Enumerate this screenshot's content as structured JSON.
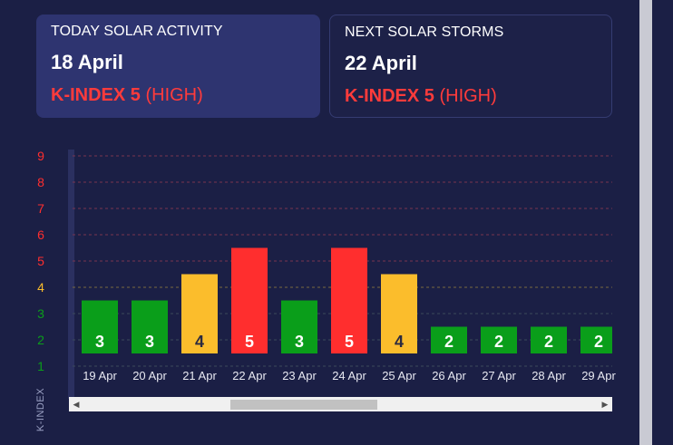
{
  "cards": {
    "today": {
      "label": "TODAY SOLAR ACTIVITY",
      "date": "18 April",
      "kindex_label": "K-INDEX 5",
      "kindex_level": "(HIGH)"
    },
    "next": {
      "label": "NEXT SOLAR STORMS",
      "date": "22 April",
      "kindex_label": "K-INDEX 5",
      "kindex_level": "(HIGH)"
    }
  },
  "colors": {
    "background": "#1b1f45",
    "low": "#0a9e1a",
    "moderate": "#fbbd2c",
    "high": "#ff2e2e"
  },
  "chart_data": {
    "type": "bar",
    "ylabel": "K-INDEX",
    "ylim": [
      1,
      9
    ],
    "yticks": [
      "1",
      "2",
      "3",
      "4",
      "5",
      "6",
      "7",
      "8",
      "9"
    ],
    "categories": [
      "19 Apr",
      "20 Apr",
      "21 Apr",
      "22 Apr",
      "23 Apr",
      "24 Apr",
      "25 Apr",
      "26 Apr",
      "27 Apr",
      "28 Apr",
      "29 Apr"
    ],
    "values": [
      3,
      3,
      4,
      5,
      3,
      5,
      4,
      2,
      2,
      2,
      2
    ],
    "grid": true
  },
  "scrollbar": {
    "left_arrow": "◀",
    "right_arrow": "▶"
  }
}
